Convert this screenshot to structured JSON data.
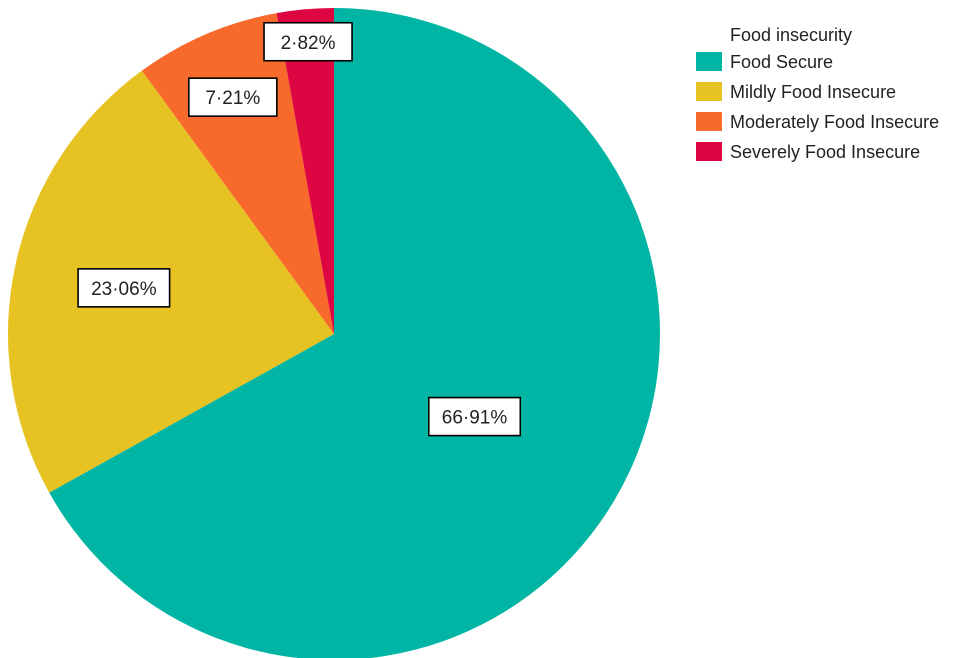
{
  "chart_data": {
    "type": "pie",
    "legend_title": "Food insecurity",
    "legend_position": "top-right",
    "slices": [
      {
        "name": "Food Secure",
        "value": 66.91,
        "label": "66·91%",
        "color": "#00B5A4"
      },
      {
        "name": "Mildly Food Insecure",
        "value": 23.06,
        "label": "23·06%",
        "color": "#E6C322"
      },
      {
        "name": "Moderately Food Insecure",
        "value": 7.21,
        "label": "7·21%",
        "color": "#F76A2B"
      },
      {
        "name": "Severely Food Insecure",
        "value": 2.82,
        "label": "2·82%",
        "color": "#DE0543"
      }
    ]
  }
}
